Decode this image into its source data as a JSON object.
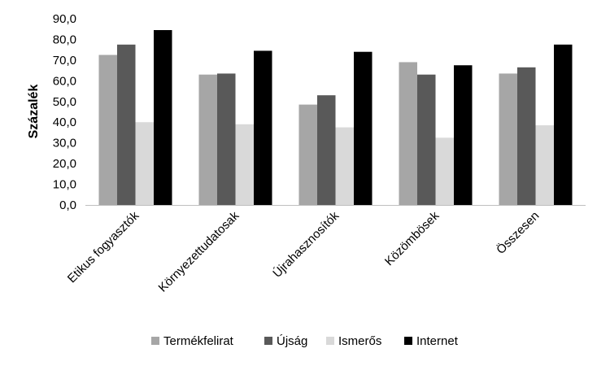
{
  "chart_data": {
    "type": "bar",
    "title": "",
    "xlabel": "",
    "ylabel": "Százalék",
    "ylim": [
      0,
      90
    ],
    "ytick_step": 10,
    "ytick_labels": [
      "0,0",
      "10,0",
      "20,0",
      "30,0",
      "40,0",
      "50,0",
      "60,0",
      "70,0",
      "80,0",
      "90,0"
    ],
    "grid": false,
    "legend_position": "bottom",
    "categories": [
      "Etikus fogyasztók",
      "Környezettudatosak",
      "Újrahasznosítók",
      "Közömbösek",
      "Összesen"
    ],
    "series": [
      {
        "name": "Termékfelirat",
        "color": "#a6a6a6",
        "values": [
          72.5,
          63.0,
          48.5,
          69.0,
          63.5
        ]
      },
      {
        "name": "Újság",
        "color": "#595959",
        "values": [
          77.5,
          63.5,
          53.0,
          63.0,
          66.5
        ]
      },
      {
        "name": "Ismerős",
        "color": "#d9d9d9",
        "values": [
          40.0,
          39.0,
          37.5,
          32.5,
          38.5
        ]
      },
      {
        "name": "Internet",
        "color": "#000000",
        "values": [
          84.5,
          74.5,
          74.0,
          67.5,
          77.5
        ]
      }
    ]
  }
}
